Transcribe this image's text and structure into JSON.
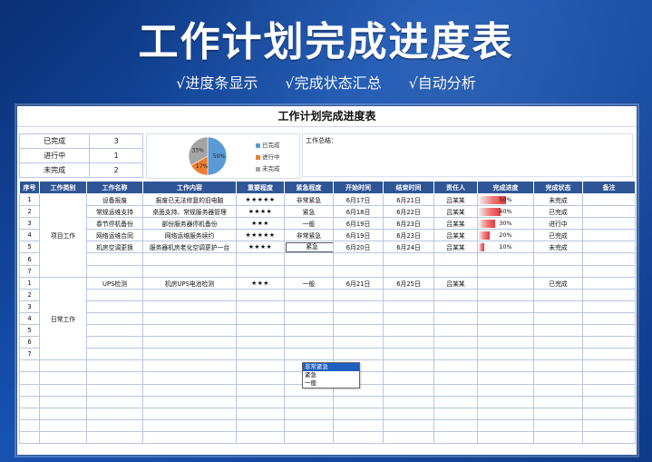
{
  "header": {
    "title": "工作计划完成进度表",
    "features": [
      "√进度条显示",
      "√完成状态汇总",
      "√自动分析"
    ]
  },
  "sheet": {
    "title": "工作计划完成进度表",
    "summary": {
      "rows": [
        {
          "label": "已完成",
          "value": "3"
        },
        {
          "label": "进行中",
          "value": "1"
        },
        {
          "label": "未完成",
          "value": "2"
        }
      ],
      "pie": {
        "slices": [
          {
            "label": "已完成",
            "percent": 50,
            "text": "50%",
            "color": "#5b9bd5"
          },
          {
            "label": "进行中",
            "percent": 17,
            "text": "17%",
            "color": "#ed7d31"
          },
          {
            "label": "未完成",
            "percent": 33,
            "text": "33%",
            "color": "#a5a5a5"
          }
        ]
      },
      "legend": [
        "已完成",
        "进行中",
        "未完成"
      ],
      "note_label": "工作总结："
    },
    "columns": [
      "序号",
      "工作类别",
      "工作名称",
      "工作内容",
      "重要程度",
      "紧急程度",
      "开始时间",
      "结束时间",
      "责任人",
      "完成进度",
      "完成状态",
      "备注"
    ],
    "groups": [
      {
        "category": "项目工作",
        "rows": [
          {
            "no": "1",
            "name": "设备报废",
            "content": "报废已无法修复的旧电脑",
            "importance": "★★★★★",
            "urgency": "非常紧急",
            "start": "6月17日",
            "end": "6月21日",
            "owner": "吕某某",
            "progress": 0.5,
            "progress_text": "50%",
            "status": "未完成",
            "remark": ""
          },
          {
            "no": "2",
            "name": "常规运维支持",
            "content": "桌面支持、常规服务器管理",
            "importance": "★★★★",
            "urgency": "紧急",
            "start": "6月18日",
            "end": "6月22日",
            "owner": "吕某某",
            "progress": 0.4,
            "progress_text": "40%",
            "status": "已完成",
            "remark": ""
          },
          {
            "no": "3",
            "name": "春节停机备份",
            "content": "部份服务器停机备份",
            "importance": "★★★",
            "urgency": "一般",
            "start": "6月19日",
            "end": "6月23日",
            "owner": "吕某某",
            "progress": 0.3,
            "progress_text": "30%",
            "status": "进行中",
            "remark": ""
          },
          {
            "no": "4",
            "name": "网络运维合同",
            "content": "网络运维服务续约",
            "importance": "★★★★★",
            "urgency": "非常紧急",
            "start": "6月19日",
            "end": "6月23日",
            "owner": "吕某某",
            "progress": 0.2,
            "progress_text": "20%",
            "status": "已完成",
            "remark": ""
          },
          {
            "no": "5",
            "name": "机房空调更换",
            "content": "服务器机房老化空调更护一台",
            "importance": "★★★★",
            "urgency": "紧急",
            "start": "6月20日",
            "end": "6月24日",
            "owner": "吕某某",
            "progress": 0.1,
            "progress_text": "10%",
            "status": "未完成",
            "remark": ""
          },
          {
            "no": "6",
            "name": "",
            "content": "",
            "importance": "",
            "urgency": "",
            "start": "",
            "end": "",
            "owner": "",
            "progress": 0,
            "progress_text": "",
            "status": "",
            "remark": ""
          },
          {
            "no": "7",
            "name": "",
            "content": "",
            "importance": "",
            "urgency": "",
            "start": "",
            "end": "",
            "owner": "",
            "progress": 0,
            "progress_text": "",
            "status": "",
            "remark": ""
          }
        ]
      },
      {
        "category": "日常工作",
        "rows": [
          {
            "no": "1",
            "name": "UPS检测",
            "content": "机房UPS电池检测",
            "importance": "★★★",
            "urgency": "一般",
            "start": "6月21日",
            "end": "6月25日",
            "owner": "吕某某",
            "progress": 0,
            "progress_text": "",
            "status": "已完成",
            "remark": ""
          },
          {
            "no": "2",
            "name": "",
            "content": "",
            "importance": "",
            "urgency": "",
            "start": "",
            "end": "",
            "owner": "",
            "progress": 0,
            "progress_text": "",
            "status": "",
            "remark": ""
          },
          {
            "no": "3",
            "name": "",
            "content": "",
            "importance": "",
            "urgency": "",
            "start": "",
            "end": "",
            "owner": "",
            "progress": 0,
            "progress_text": "",
            "status": "",
            "remark": ""
          },
          {
            "no": "4",
            "name": "",
            "content": "",
            "importance": "",
            "urgency": "",
            "start": "",
            "end": "",
            "owner": "",
            "progress": 0,
            "progress_text": "",
            "status": "",
            "remark": ""
          },
          {
            "no": "5",
            "name": "",
            "content": "",
            "importance": "",
            "urgency": "",
            "start": "",
            "end": "",
            "owner": "",
            "progress": 0,
            "progress_text": "",
            "status": "",
            "remark": ""
          },
          {
            "no": "6",
            "name": "",
            "content": "",
            "importance": "",
            "urgency": "",
            "start": "",
            "end": "",
            "owner": "",
            "progress": 0,
            "progress_text": "",
            "status": "",
            "remark": ""
          },
          {
            "no": "7",
            "name": "",
            "content": "",
            "importance": "",
            "urgency": "",
            "start": "",
            "end": "",
            "owner": "",
            "progress": 0,
            "progress_text": "",
            "status": "",
            "remark": ""
          }
        ]
      }
    ],
    "dropdown": {
      "options": [
        "非常紧急",
        "紧急",
        "一般"
      ],
      "selected_index": 0
    }
  }
}
